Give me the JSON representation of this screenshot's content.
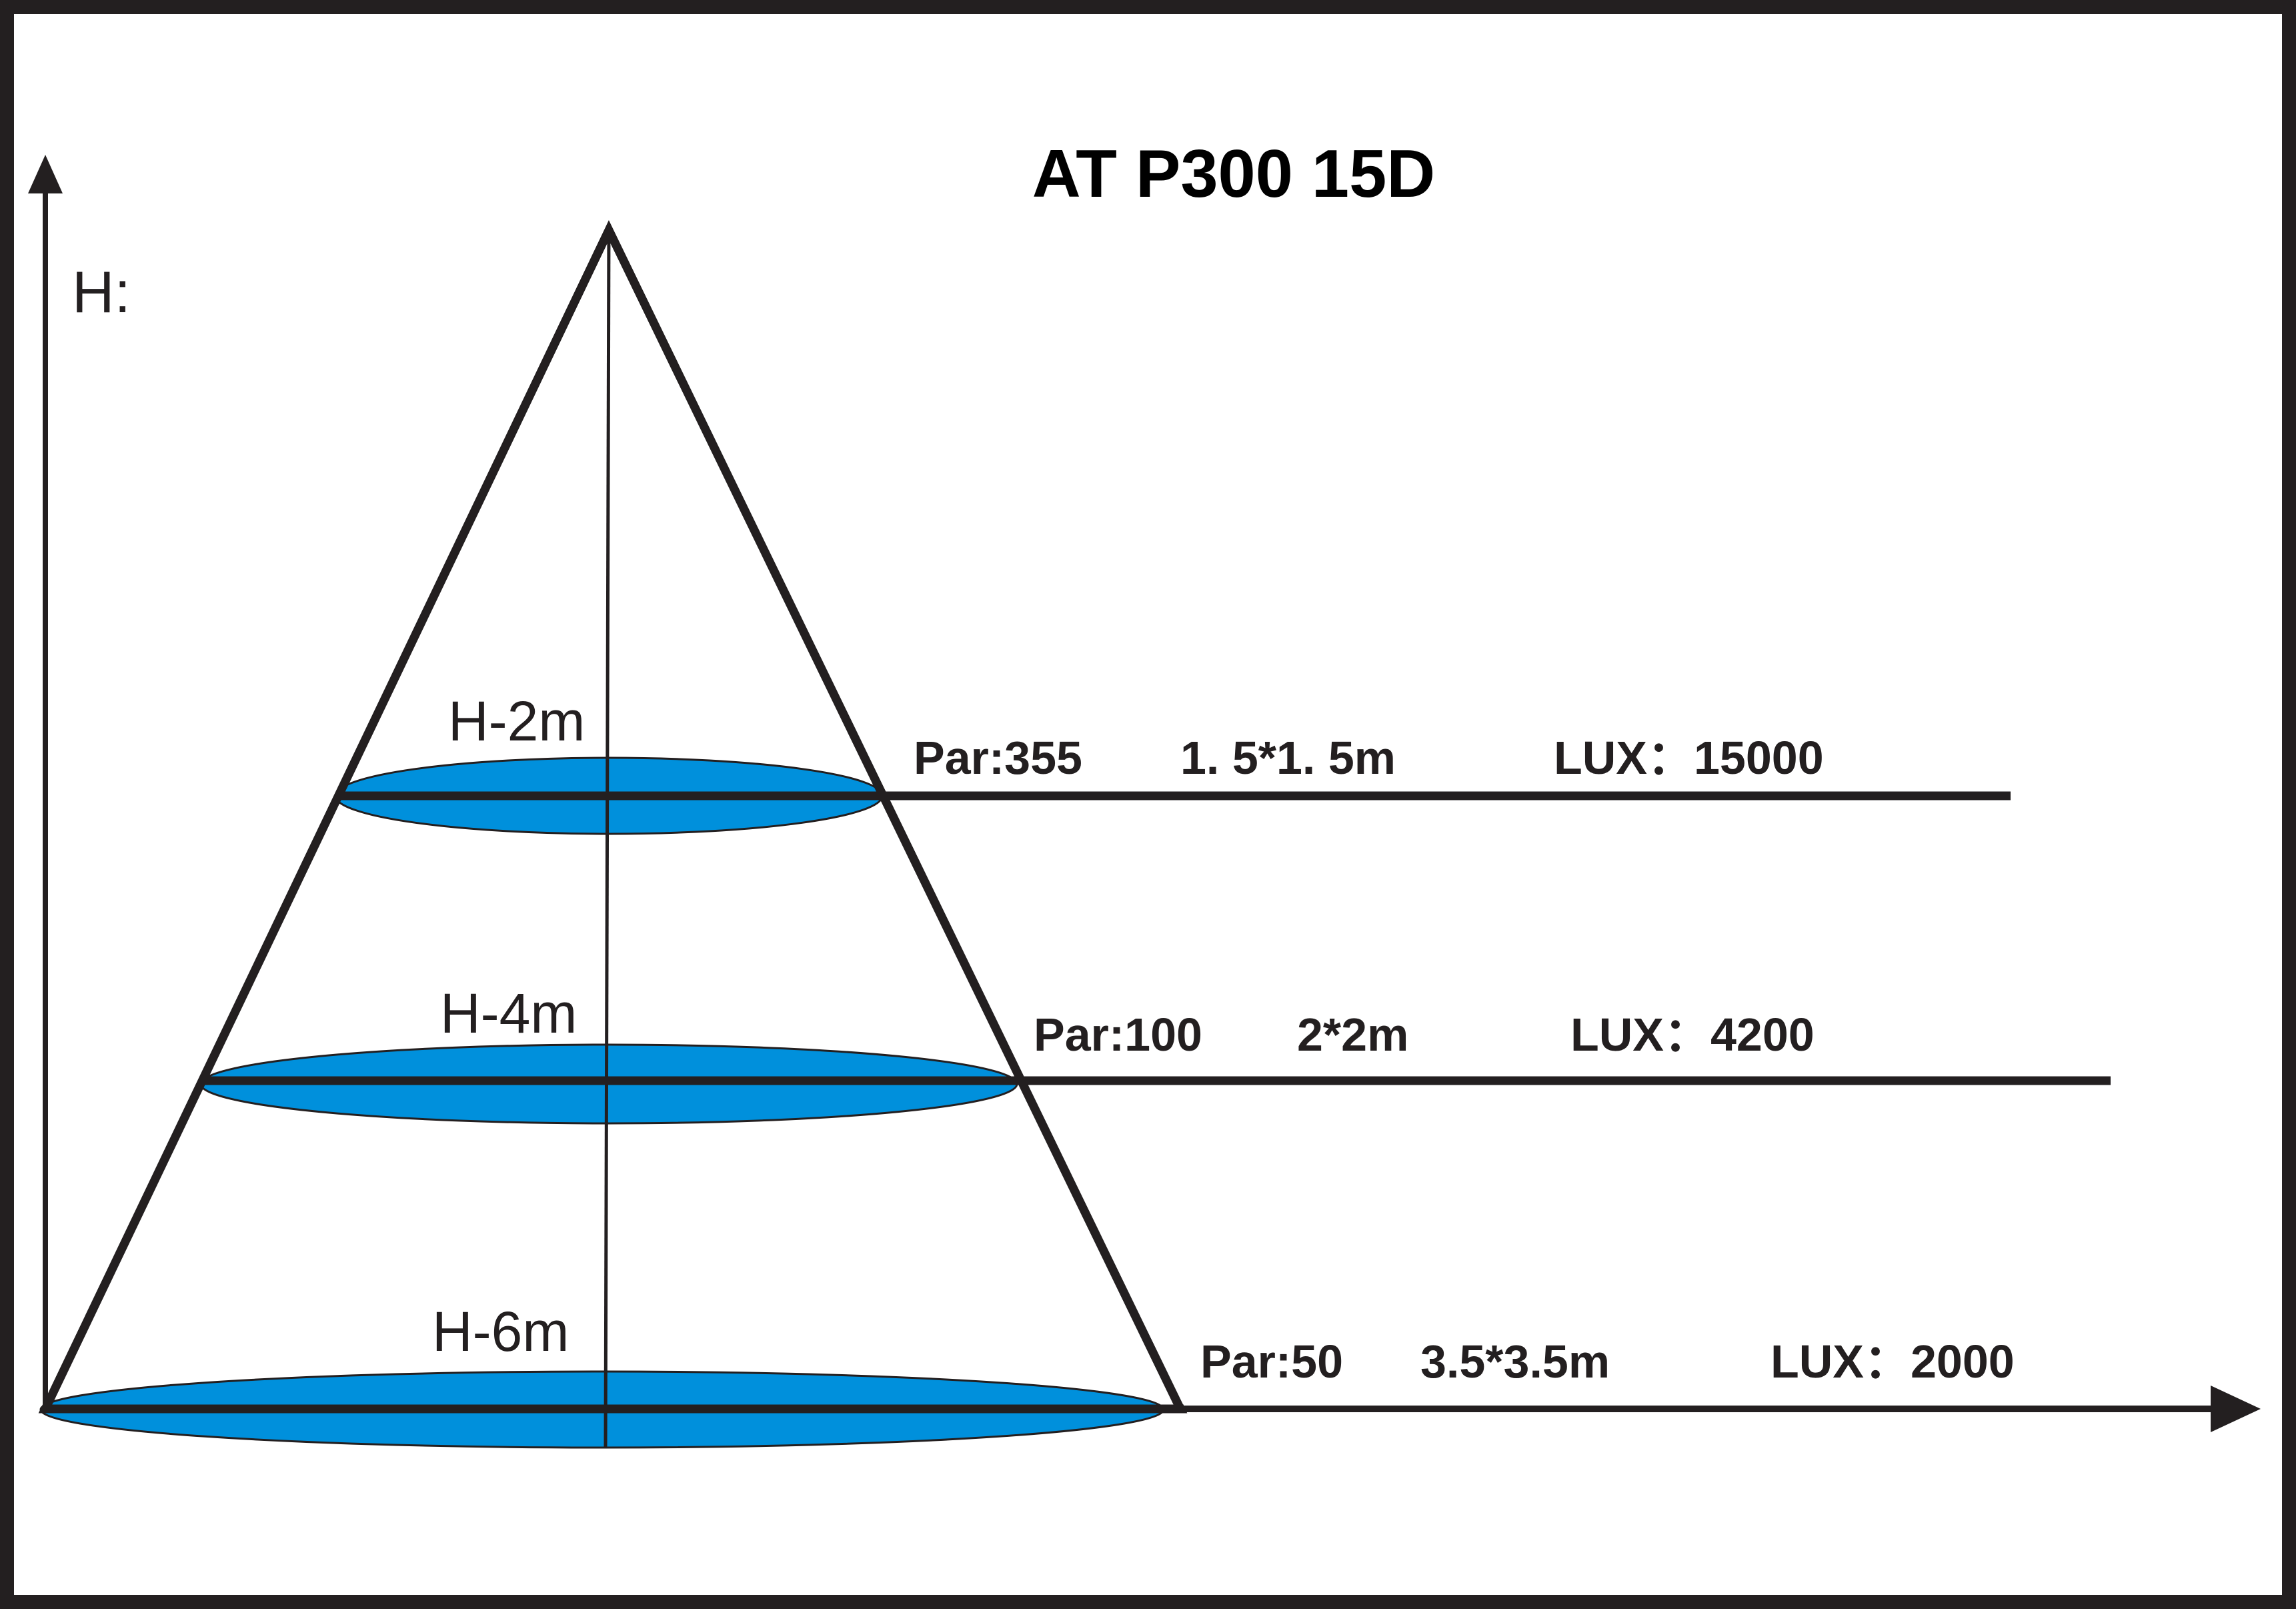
{
  "title": "AT P300 15D",
  "y_axis_label": "H:",
  "colors": {
    "beam": "#0090dc",
    "line": "#231f20",
    "background": "#ffffff"
  },
  "levels": [
    {
      "height_label": "H-2m",
      "height_m": 2,
      "par": "Par:355",
      "size": "1. 5*1. 5m",
      "lux": "LUX：15000"
    },
    {
      "height_label": "H-4m",
      "height_m": 4,
      "par": "Par:100",
      "size": "2*2m",
      "lux": "LUX：4200"
    },
    {
      "height_label": "H-6m",
      "height_m": 6,
      "par": "Par:50",
      "size": "3.5*3.5m",
      "lux": "LUX：2000"
    }
  ]
}
